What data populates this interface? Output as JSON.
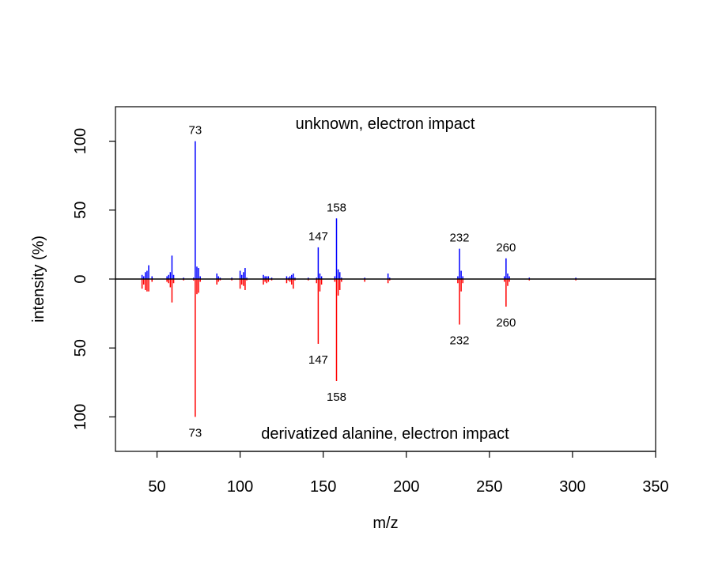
{
  "chart_data": {
    "type": "bar",
    "subtype": "mirror-mass-spectrum",
    "xlabel": "m/z",
    "ylabel": "intensity (%)",
    "xlim": [
      25,
      350
    ],
    "ylim": [
      -125,
      125
    ],
    "x_ticks": [
      50,
      100,
      150,
      200,
      250,
      300,
      350
    ],
    "y_ticks": [
      {
        "value": 100,
        "label": "100"
      },
      {
        "value": 50,
        "label": "50"
      },
      {
        "value": 0,
        "label": "0"
      },
      {
        "value": -50,
        "label": "50"
      },
      {
        "value": -100,
        "label": "100"
      }
    ],
    "grid": false,
    "legend": "none",
    "colors": {
      "top": "#0000ff",
      "bottom": "#ff0000",
      "axis": "#000000"
    },
    "series": [
      {
        "name": "unknown, electron impact",
        "direction": "up",
        "color": "#0000ff",
        "mz": [
          41,
          42,
          43,
          44,
          45,
          47,
          56,
          57,
          58,
          59,
          60,
          66,
          72,
          73,
          74,
          75,
          76,
          86,
          87,
          88,
          95,
          100,
          101,
          102,
          103,
          104,
          114,
          115,
          116,
          117,
          119,
          128,
          129,
          130,
          131,
          132,
          133,
          141,
          146,
          147,
          148,
          149,
          157,
          158,
          159,
          160,
          161,
          175,
          189,
          190,
          231,
          232,
          233,
          234,
          259,
          260,
          261,
          262,
          274,
          302
        ],
        "intensity": [
          3,
          2,
          5,
          6,
          10,
          2,
          2,
          3,
          5,
          17,
          3,
          1,
          1,
          100,
          9,
          8,
          2,
          4,
          2,
          1,
          1,
          6,
          3,
          5,
          8,
          1,
          3,
          2,
          2,
          2,
          1,
          2,
          1,
          2,
          3,
          4,
          1,
          1,
          1,
          23,
          4,
          2,
          2,
          44,
          7,
          5,
          1,
          1,
          4,
          1,
          2,
          22,
          6,
          2,
          2,
          15,
          4,
          2,
          1,
          1
        ]
      },
      {
        "name": "derivatized alanine, electron impact",
        "direction": "down",
        "color": "#ff0000",
        "mz": [
          41,
          42,
          43,
          44,
          45,
          47,
          56,
          57,
          58,
          59,
          60,
          66,
          72,
          73,
          74,
          75,
          76,
          86,
          87,
          88,
          95,
          100,
          101,
          102,
          103,
          104,
          114,
          115,
          116,
          117,
          119,
          128,
          129,
          130,
          131,
          132,
          133,
          141,
          146,
          147,
          148,
          149,
          157,
          158,
          159,
          160,
          161,
          175,
          189,
          190,
          231,
          232,
          233,
          234,
          259,
          260,
          261,
          262,
          274,
          302
        ],
        "intensity": [
          7,
          4,
          8,
          9,
          9,
          2,
          2,
          3,
          6,
          17,
          3,
          1,
          1,
          100,
          11,
          10,
          2,
          4,
          2,
          1,
          1,
          7,
          4,
          5,
          8,
          1,
          4,
          2,
          3,
          2,
          1,
          3,
          1,
          2,
          4,
          7,
          1,
          1,
          3,
          47,
          9,
          4,
          2,
          74,
          12,
          8,
          2,
          2,
          3,
          1,
          3,
          33,
          9,
          3,
          2,
          20,
          5,
          2,
          1,
          1
        ]
      }
    ],
    "peak_labels_top": [
      {
        "mz": 73,
        "intensity": 100,
        "text": "73"
      },
      {
        "mz": 147,
        "intensity": 23,
        "text": "147"
      },
      {
        "mz": 158,
        "intensity": 44,
        "text": "158"
      },
      {
        "mz": 232,
        "intensity": 22,
        "text": "232"
      },
      {
        "mz": 260,
        "intensity": 15,
        "text": "260"
      }
    ],
    "peak_labels_bottom": [
      {
        "mz": 73,
        "intensity": 100,
        "text": "73"
      },
      {
        "mz": 147,
        "intensity": 47,
        "text": "147"
      },
      {
        "mz": 158,
        "intensity": 74,
        "text": "158"
      },
      {
        "mz": 232,
        "intensity": 33,
        "text": "232"
      },
      {
        "mz": 260,
        "intensity": 20,
        "text": "260"
      }
    ]
  }
}
